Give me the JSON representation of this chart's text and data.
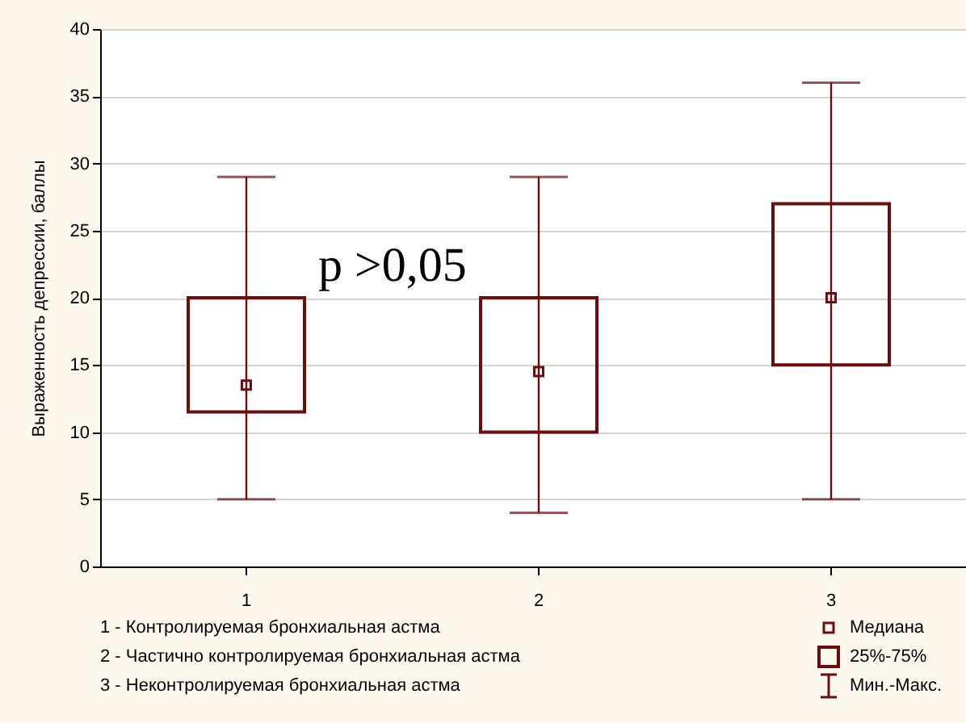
{
  "chart_data": {
    "type": "box",
    "ylabel": "Выраженность депрессии, баллы",
    "categories": [
      "1",
      "2",
      "3"
    ],
    "boxes": [
      {
        "low": 5,
        "q1": 11.5,
        "median": 13.5,
        "q3": 20,
        "high": 29
      },
      {
        "low": 4,
        "q1": 10,
        "median": 14.5,
        "q3": 20,
        "high": 29
      },
      {
        "low": 5,
        "q1": 15,
        "median": 20,
        "q3": 27,
        "high": 36
      }
    ],
    "color": "#6e0c0c",
    "ylim": [
      0,
      40
    ],
    "yticks": [
      0,
      5,
      10,
      15,
      20,
      25,
      30,
      35,
      40
    ],
    "grid": "y",
    "annotations": [
      "p >0,05",
      "1 - Контролируемая бронхиальная астма",
      "2 - Частично контролируемая бронхиальная астма",
      "3 - Неконтролируемая бронхиальная астма",
      "Медиана",
      "25%-75%",
      "Мин.-Макс."
    ]
  }
}
